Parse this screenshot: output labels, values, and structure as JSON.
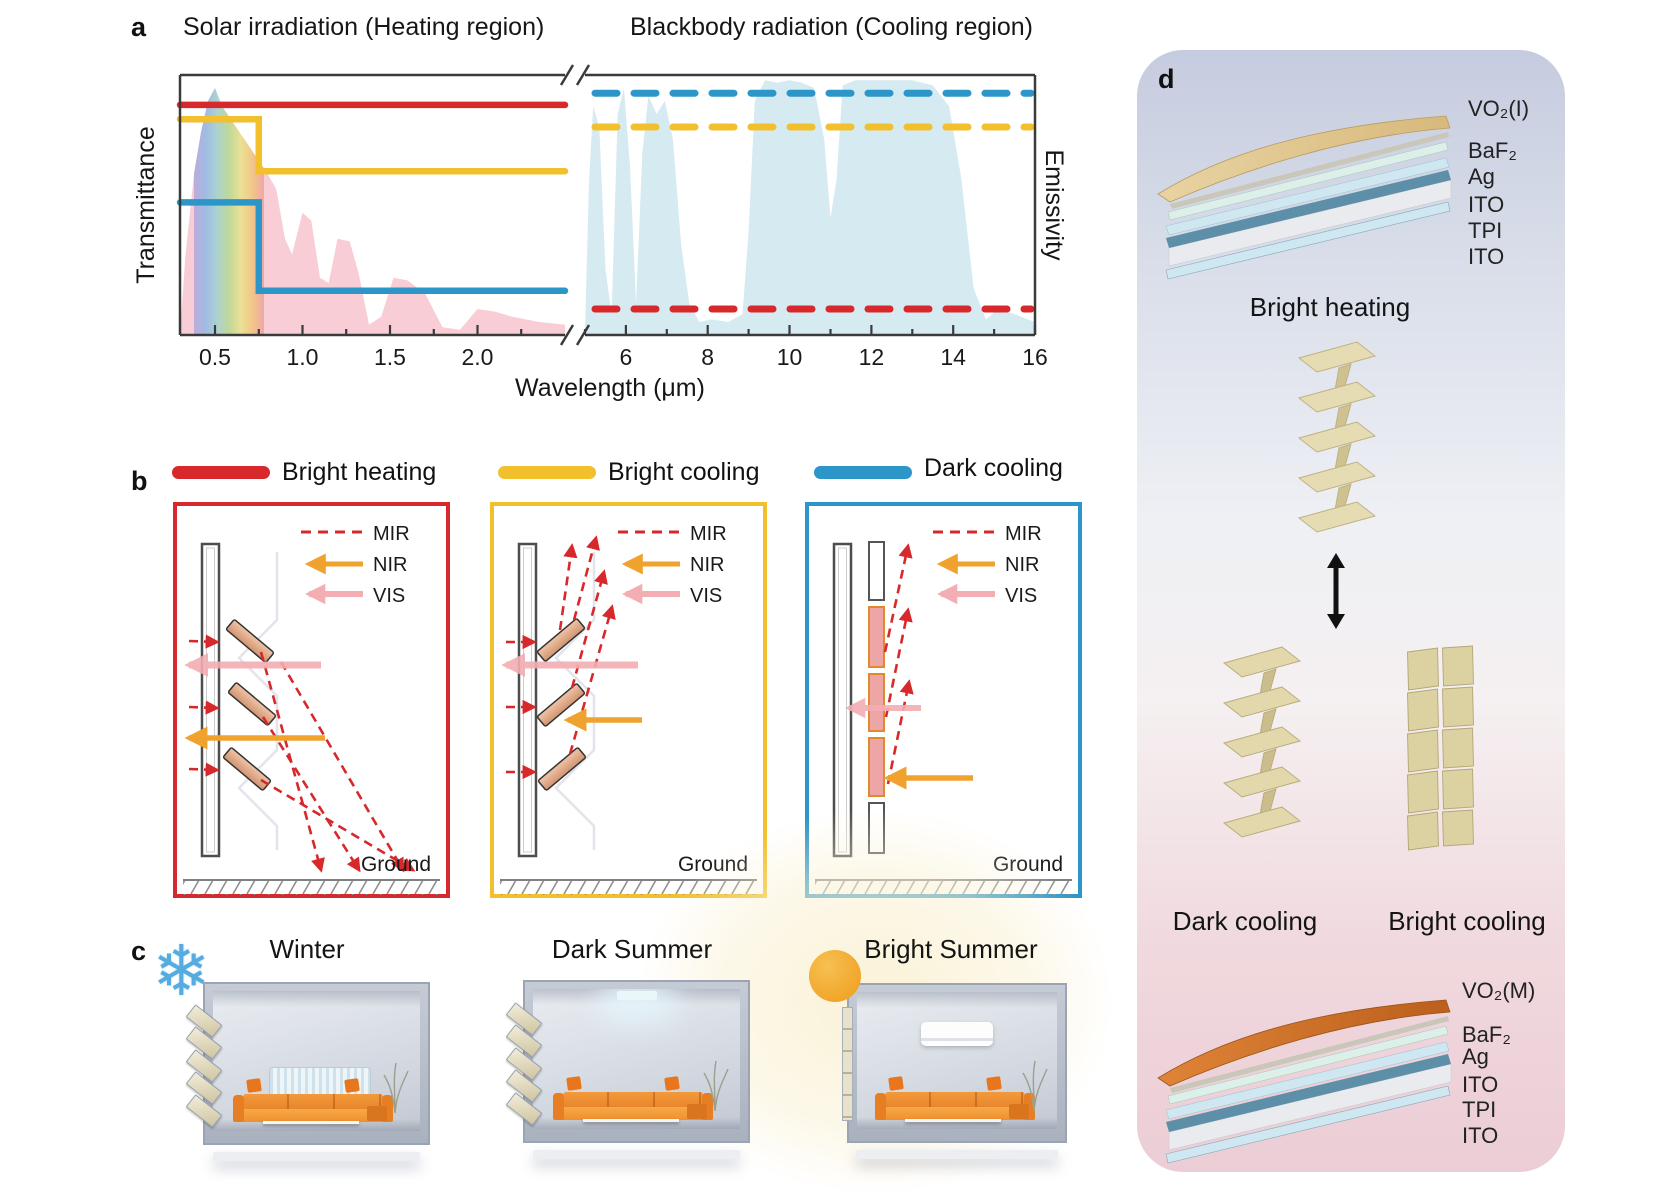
{
  "panel_a": {
    "label": "a",
    "title_left": "Solar irradiation (Heating region)",
    "title_right": "Blackbody radiation (Cooling region)",
    "ylabel_left": "Transmittance",
    "ylabel_right": "Emissivity"
  },
  "chart_data": {
    "type": "line",
    "titles": {
      "left": "Solar irradiation (Heating region)",
      "right": "Blackbody radiation (Cooling region)"
    },
    "x_axis": {
      "label": "Wavelength (μm)",
      "break": true,
      "left_range": [
        0.3,
        2.5
      ],
      "right_range": [
        5,
        16
      ],
      "left_ticks": [
        "0.5",
        "1.0",
        "1.5",
        "2.0"
      ],
      "left_tick_values": [
        0.5,
        1.0,
        1.5,
        2.0
      ],
      "right_ticks": [
        "6",
        "8",
        "10",
        "12",
        "14",
        "16"
      ],
      "right_tick_values": [
        6,
        8,
        10,
        12,
        14,
        16
      ],
      "left_minor_ticks": [
        0.75,
        1.25,
        1.75,
        2.25
      ],
      "right_minor_ticks": [
        5,
        7,
        9,
        11,
        13,
        15
      ]
    },
    "y_left": {
      "label": "Transmittance",
      "range": [
        0,
        1
      ]
    },
    "y_right": {
      "label": "Emissivity",
      "range": [
        0,
        1
      ]
    },
    "series": [
      {
        "name": "Bright heating",
        "color": "#d7282b",
        "solar_transmittance": [
          [
            0.3,
            0.885
          ],
          [
            2.5,
            0.885
          ]
        ],
        "mir_emissivity": [
          [
            5,
            0.1
          ],
          [
            16,
            0.1
          ]
        ]
      },
      {
        "name": "Bright cooling",
        "color": "#f2c02d",
        "solar_transmittance": [
          [
            0.3,
            0.83
          ],
          [
            0.75,
            0.83
          ],
          [
            0.75,
            0.63
          ],
          [
            2.5,
            0.63
          ]
        ],
        "mir_emissivity": [
          [
            5,
            0.8
          ],
          [
            16,
            0.8
          ]
        ]
      },
      {
        "name": "Dark cooling",
        "color": "#2d96c8",
        "solar_transmittance": [
          [
            0.3,
            0.51
          ],
          [
            0.75,
            0.51
          ],
          [
            0.75,
            0.17
          ],
          [
            2.5,
            0.17
          ]
        ],
        "mir_emissivity": [
          [
            5,
            0.93
          ],
          [
            16,
            0.93
          ]
        ]
      }
    ],
    "background_spectra": [
      {
        "name": "Solar spectrum",
        "region": "left",
        "fill": "#f8cdd5",
        "points": [
          [
            0.3,
            0
          ],
          [
            0.33,
            0.3
          ],
          [
            0.38,
            0.62
          ],
          [
            0.42,
            0.78
          ],
          [
            0.46,
            0.9
          ],
          [
            0.5,
            0.95
          ],
          [
            0.54,
            0.88
          ],
          [
            0.58,
            0.84
          ],
          [
            0.62,
            0.8
          ],
          [
            0.66,
            0.76
          ],
          [
            0.7,
            0.72
          ],
          [
            0.75,
            0.67
          ],
          [
            0.8,
            0.62
          ],
          [
            0.85,
            0.56
          ],
          [
            0.9,
            0.37
          ],
          [
            0.94,
            0.31
          ],
          [
            1.0,
            0.47
          ],
          [
            1.05,
            0.44
          ],
          [
            1.1,
            0.22
          ],
          [
            1.15,
            0.2
          ],
          [
            1.2,
            0.37
          ],
          [
            1.27,
            0.36
          ],
          [
            1.32,
            0.24
          ],
          [
            1.38,
            0.04
          ],
          [
            1.45,
            0.07
          ],
          [
            1.52,
            0.22
          ],
          [
            1.6,
            0.21
          ],
          [
            1.7,
            0.16
          ],
          [
            1.8,
            0.03
          ],
          [
            1.9,
            0.02
          ],
          [
            2.0,
            0.1
          ],
          [
            2.1,
            0.09
          ],
          [
            2.2,
            0.07
          ],
          [
            2.35,
            0.05
          ],
          [
            2.5,
            0.04
          ]
        ]
      },
      {
        "name": "Blackbody radiation / atmospheric window",
        "region": "right",
        "fill": "#d6eaf2",
        "points": [
          [
            5.0,
            0.02
          ],
          [
            5.1,
            0.6
          ],
          [
            5.2,
            0.88
          ],
          [
            5.35,
            0.8
          ],
          [
            5.5,
            0.25
          ],
          [
            5.65,
            0.08
          ],
          [
            5.8,
            0.85
          ],
          [
            5.95,
            0.95
          ],
          [
            6.1,
            0.65
          ],
          [
            6.25,
            0.12
          ],
          [
            6.4,
            0.7
          ],
          [
            6.55,
            0.92
          ],
          [
            6.75,
            0.85
          ],
          [
            6.95,
            0.9
          ],
          [
            7.15,
            0.75
          ],
          [
            7.35,
            0.35
          ],
          [
            7.55,
            0.12
          ],
          [
            7.8,
            0.05
          ],
          [
            8.1,
            0.06
          ],
          [
            8.5,
            0.05
          ],
          [
            8.85,
            0.08
          ],
          [
            9.0,
            0.4
          ],
          [
            9.15,
            0.9
          ],
          [
            9.4,
            0.98
          ],
          [
            9.7,
            0.97
          ],
          [
            10.0,
            0.98
          ],
          [
            10.3,
            0.97
          ],
          [
            10.6,
            0.95
          ],
          [
            10.85,
            0.75
          ],
          [
            11.0,
            0.45
          ],
          [
            11.15,
            0.6
          ],
          [
            11.3,
            0.96
          ],
          [
            11.6,
            0.98
          ],
          [
            12.0,
            0.98
          ],
          [
            12.5,
            0.98
          ],
          [
            13.0,
            0.98
          ],
          [
            13.5,
            0.96
          ],
          [
            13.9,
            0.88
          ],
          [
            14.2,
            0.6
          ],
          [
            14.5,
            0.18
          ],
          [
            14.8,
            0.06
          ],
          [
            15.1,
            0.1
          ],
          [
            15.5,
            0.08
          ],
          [
            16,
            0.05
          ]
        ]
      }
    ],
    "visible_band": {
      "range": [
        0.38,
        0.78
      ],
      "colors": [
        "#b3a6d9",
        "#8fb8e8",
        "#9fd4cf",
        "#b5d98f",
        "#e8e48a",
        "#f2c579",
        "#eba1a1"
      ]
    }
  },
  "legend": {
    "items": [
      {
        "label": "Bright heating",
        "color": "#d7282b"
      },
      {
        "label": "Bright cooling",
        "color": "#f2c02d"
      },
      {
        "label": "Dark cooling",
        "color": "#2d96c8"
      }
    ]
  },
  "panel_b": {
    "label": "b",
    "ray_types": {
      "mir": "MIR",
      "nir": "NIR",
      "vis": "VIS"
    },
    "ground_label": "Ground",
    "modes": [
      {
        "border_color": "#d7282b"
      },
      {
        "border_color": "#f2c02d"
      },
      {
        "border_color": "#2d96c8"
      }
    ],
    "ray_colors": {
      "mir": "#d7282b",
      "nir": "#f0a22e",
      "vis": "#f2aeb2"
    }
  },
  "panel_c": {
    "label": "c",
    "scenes": [
      {
        "label": "Winter"
      },
      {
        "label": "Dark Summer"
      },
      {
        "label": "Bright Summer"
      }
    ]
  },
  "panel_d": {
    "label": "d",
    "top_stack": {
      "layers": [
        "VO₂(I)",
        "BaF₂",
        "Ag",
        "ITO",
        "TPI",
        "ITO"
      ],
      "caption": "Bright heating"
    },
    "states": {
      "dark": "Dark cooling",
      "bright": "Bright cooling"
    },
    "bottom_stack": {
      "layers": [
        "VO₂(M)",
        "BaF₂",
        "Ag",
        "ITO",
        "TPI",
        "ITO"
      ]
    }
  },
  "colors": {
    "bright_heating": "#d7282b",
    "bright_cooling": "#f2c02d",
    "dark_cooling": "#2d96c8",
    "mir_ray": "#d7282b",
    "nir_ray": "#f0a22e",
    "vis_ray": "#f2aeb2",
    "solar_fill": "#f8cdd5",
    "atmosphere_fill": "#d6eaf2",
    "kirigami_beige": "#e6dcb3",
    "sofa_orange": "#ef8d2e",
    "panel_d_top": "#c6ccdf",
    "panel_d_bottom": "#edccd4"
  }
}
